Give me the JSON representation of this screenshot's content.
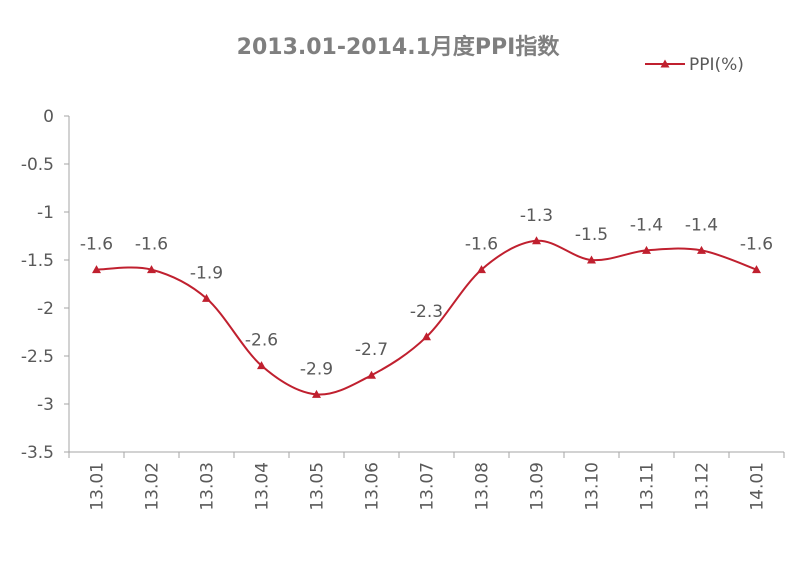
{
  "chart_data": {
    "type": "line",
    "title": "2013.01-2014.1月度PPI指数",
    "xlabel": "",
    "ylabel": "",
    "categories": [
      "13.01",
      "13.02",
      "13.03",
      "13.04",
      "13.05",
      "13.06",
      "13.07",
      "13.08",
      "13.09",
      "13.10",
      "13.11",
      "13.12",
      "14.01"
    ],
    "series": [
      {
        "name": "PPI(%)",
        "values": [
          -1.6,
          -1.6,
          -1.9,
          -2.6,
          -2.9,
          -2.7,
          -2.3,
          -1.6,
          -1.3,
          -1.5,
          -1.4,
          -1.4,
          -1.6
        ],
        "color": "#c0202f",
        "marker": "triangle",
        "smooth": true
      }
    ],
    "ylim": [
      -3.5,
      0
    ],
    "yticks": [
      0,
      -0.5,
      -1,
      -1.5,
      -2,
      -2.5,
      -3,
      -3.5
    ],
    "ytick_labels": [
      "0",
      "-0.5",
      "-1",
      "-1.5",
      "-2",
      "-2.5",
      "-3",
      "-3.5"
    ],
    "data_labels": [
      "-1.6",
      "-1.6",
      "-1.9",
      "-2.6",
      "-2.9",
      "-2.7",
      "-2.3",
      "-1.6",
      "-1.3",
      "-1.5",
      "-1.4",
      "-1.4",
      "-1.6"
    ],
    "x_tick_rotation": "vertical",
    "grid": false,
    "legend_position": "top-right",
    "axis_color": "#a6a6a6"
  }
}
